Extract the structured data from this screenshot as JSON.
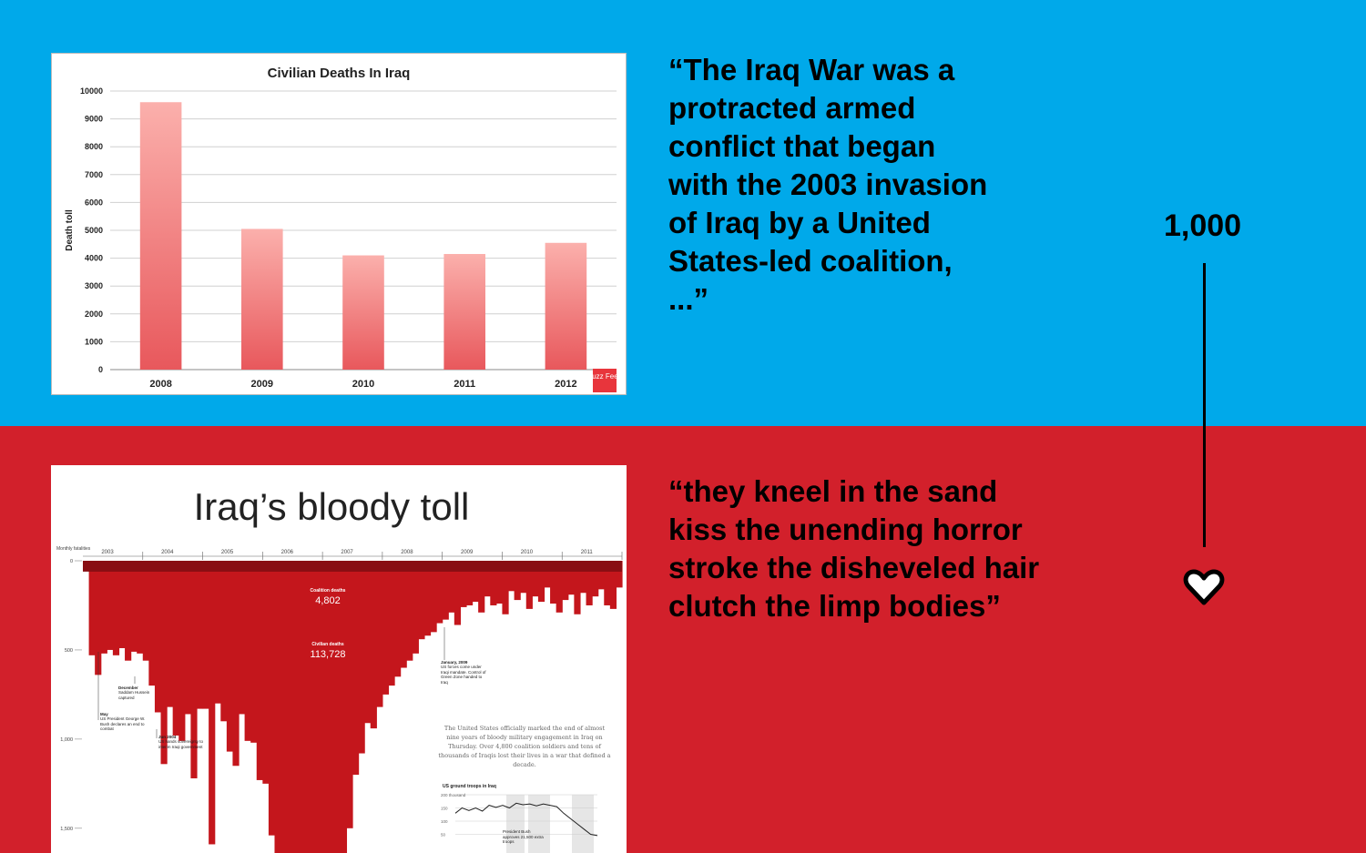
{
  "colors": {
    "top_bg": "#00a9ea",
    "bottom_bg": "#d2202b",
    "bar_fill": "#f08585",
    "blood": "#c4161c"
  },
  "quote_top": "“The Iraq War was a protracted armed conflict that began with the 2003 invasion of Iraq by a United States-led coalition, ...”",
  "quote_bottom": "“they kneel in the sand\nkiss the unending horror\nstroke the disheveled hair\nclutch the limp bodies”",
  "counter": "1,000",
  "icons": {
    "heart": "heart-icon"
  },
  "chart_data": [
    {
      "type": "bar",
      "title": "Civilian Deaths In Iraq",
      "ylabel": "Death toll",
      "xlabel": "",
      "categories": [
        "2008",
        "2009",
        "2010",
        "2011",
        "2012"
      ],
      "values": [
        9600,
        5050,
        4100,
        4150,
        4550
      ],
      "ylim": [
        0,
        10000
      ],
      "yticks": [
        0,
        1000,
        2000,
        3000,
        4000,
        5000,
        6000,
        7000,
        8000,
        9000,
        10000
      ],
      "grid": true,
      "logo": "Buzz Feed"
    },
    {
      "type": "area",
      "title": "Iraq’s bloody toll",
      "ylabel": "Monthly fatalities",
      "x_ticks": [
        "2003",
        "2004",
        "2005",
        "2006",
        "2007",
        "2008",
        "2009",
        "2010",
        "2011"
      ],
      "y_ticks": [
        "0",
        "500",
        "1,000",
        "1,500"
      ],
      "y_tick_values": [
        0,
        500,
        1000,
        1500
      ],
      "ylim": [
        0,
        1700
      ],
      "coalition_label": "Coalition deaths",
      "coalition_total": "4,802",
      "civilian_label": "Civilian deaths",
      "civilian_total": "113,728",
      "monthly_civilian": [
        60,
        530,
        640,
        520,
        500,
        530,
        490,
        560,
        510,
        520,
        560,
        700,
        850,
        1140,
        820,
        980,
        1010,
        860,
        1220,
        830,
        830,
        1590,
        800,
        900,
        1070,
        1150,
        860,
        1010,
        1020,
        1230,
        1250,
        1540,
        1700,
        1700,
        1700,
        1700,
        1700,
        1700,
        1700,
        1700,
        1700,
        1700,
        1700,
        1640,
        1500,
        1200,
        1080,
        910,
        940,
        820,
        750,
        700,
        650,
        600,
        560,
        520,
        440,
        420,
        400,
        350,
        330,
        290,
        360,
        260,
        250,
        230,
        290,
        200,
        250,
        240,
        300,
        170,
        220,
        180,
        270,
        200,
        230,
        150,
        240,
        290,
        220,
        190,
        300,
        180,
        250,
        200,
        160,
        250,
        270,
        150
      ],
      "annotations": [
        {
          "date": "May",
          "text": "US President George W. Bush declares an end to combat"
        },
        {
          "date": "December",
          "text": "Saddam Hussein captured"
        },
        {
          "date": "Jun 2004",
          "text": "US hands sovereignty to interim Iraqi government"
        },
        {
          "date": "January, 2009",
          "text": "US forces come under Iraqi mandate. Control of Green Zone handed to Iraq"
        }
      ],
      "caption": "The United States officially marked the end of almost nine years of bloody military engagement in Iraq on Thursday. Over 4,800 coalition soldiers and tens of thousands of Iraqis lost their lives in a war that defined a decade.",
      "inset": {
        "title": "US ground troops in Iraq",
        "y_ticks": [
          "200 thousand",
          "150",
          "100",
          "50"
        ],
        "y_tick_values": [
          200,
          150,
          100,
          50
        ],
        "values": [
          130,
          150,
          140,
          150,
          138,
          160,
          152,
          160,
          150,
          168,
          162,
          165,
          158,
          165,
          160,
          155,
          130,
          110,
          90,
          70,
          50,
          45
        ],
        "annotation": "President Bush approves 21,500 extra troops"
      }
    }
  ]
}
